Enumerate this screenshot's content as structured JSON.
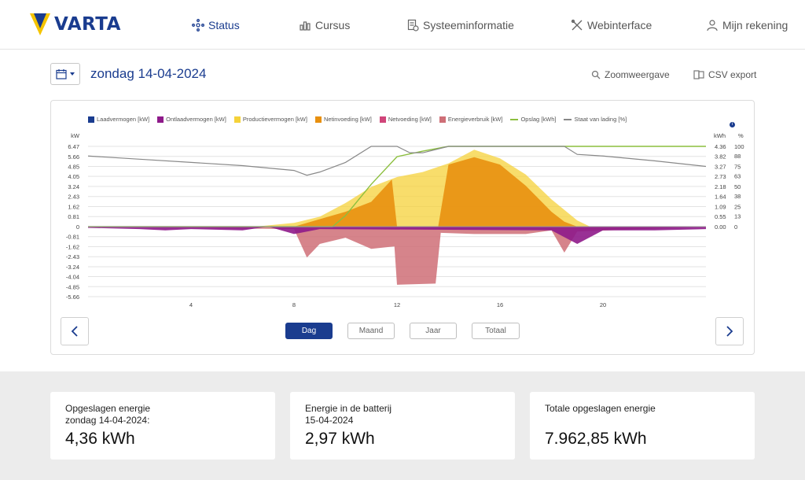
{
  "brand": {
    "name": "VARTA"
  },
  "nav": [
    {
      "label": "Status",
      "icon": "status-nodes-icon",
      "active": true
    },
    {
      "label": "Cursus",
      "icon": "bar-chart-icon"
    },
    {
      "label": "Systeeminformatie",
      "icon": "document-info-icon"
    },
    {
      "label": "Webinterface",
      "icon": "tools-icon"
    },
    {
      "label": "Mijn rekening",
      "icon": "user-icon"
    }
  ],
  "toolbar": {
    "date": "zondag 14-04-2024",
    "zoom": "Zoomweergave",
    "csv": "CSV export"
  },
  "legend": [
    {
      "label": "Laadvermogen [kW]",
      "color": "#1a3c8f"
    },
    {
      "label": "Ontlaadvermogen [kW]",
      "color": "#8e1a8a"
    },
    {
      "label": "Productievermogen [kW]",
      "color": "#f5d23a"
    },
    {
      "label": "Netinvoeding [kW]",
      "color": "#e8900f"
    },
    {
      "label": "Netvoeding [kW]",
      "color": "#d0457a"
    },
    {
      "label": "Energieverbruik [kW]",
      "color": "#cf6f77"
    },
    {
      "label": "Opslag [kWh]",
      "color": "#8cbf3f"
    },
    {
      "label": "Staat van lading [%]",
      "color": "#888888"
    }
  ],
  "chart_data": {
    "type": "area",
    "x_ticks": [
      "4",
      "8",
      "12",
      "16",
      "20"
    ],
    "xlim": [
      0,
      24
    ],
    "left_axis": {
      "label": "kW",
      "ticks": [
        "6.47",
        "5.66",
        "4.85",
        "4.05",
        "3.24",
        "2.43",
        "1.62",
        "0.81",
        "0",
        "-0.81",
        "-1.62",
        "-2.43",
        "-3.24",
        "-4.04",
        "-4.85",
        "-5.66"
      ],
      "ylim": [
        -5.66,
        6.47
      ]
    },
    "right_axis_kwh": {
      "label": "kWh",
      "ticks": [
        "4.36",
        "3.82",
        "3.27",
        "2.73",
        "2.18",
        "1.64",
        "1.09",
        "0.55",
        "0.00"
      ],
      "ylim": [
        0,
        4.36
      ]
    },
    "right_axis_pct": {
      "label": "%",
      "ticks": [
        "100",
        "88",
        "75",
        "63",
        "50",
        "38",
        "25",
        "13",
        "0"
      ],
      "ylim": [
        0,
        100
      ]
    },
    "series": [
      {
        "name": "Productievermogen [kW]",
        "x": [
          6.5,
          8,
          9,
          10,
          11,
          12,
          13,
          14,
          15,
          16,
          17,
          18,
          19,
          19.5
        ],
        "values": [
          0,
          0.3,
          0.8,
          1.9,
          3.2,
          4.0,
          4.4,
          5.1,
          6.2,
          5.5,
          4.2,
          2.2,
          0.5,
          0
        ]
      },
      {
        "name": "Netinvoeding [kW]",
        "x": [
          8,
          9,
          10,
          11,
          11.8,
          12,
          13.6,
          14,
          15,
          16,
          17,
          18,
          18.5,
          19
        ],
        "values": [
          0,
          0.6,
          1.2,
          2.0,
          3.8,
          0,
          0,
          5.0,
          5.6,
          5.0,
          3.3,
          1.2,
          0.4,
          0
        ]
      },
      {
        "name": "Energieverbruik [kW]",
        "x": [
          0,
          8,
          8.5,
          9,
          10,
          11,
          11.9,
          12,
          13.5,
          13.7,
          15,
          17,
          18,
          18.5,
          19,
          24
        ],
        "values": [
          0,
          -0.2,
          -2.5,
          -1.4,
          -0.9,
          -1.8,
          -1.6,
          -4.7,
          -4.6,
          -0.5,
          -0.6,
          -0.6,
          -0.3,
          -2.1,
          -0.4,
          0
        ]
      },
      {
        "name": "Ontlaadvermogen [kW]",
        "x": [
          0,
          2,
          3,
          4,
          6,
          7,
          8,
          9,
          18,
          19,
          20,
          22,
          24
        ],
        "values": [
          -0.1,
          -0.2,
          -0.3,
          -0.2,
          -0.3,
          0,
          -0.6,
          -0.2,
          -0.3,
          -1.4,
          -0.3,
          -0.3,
          -0.2
        ]
      },
      {
        "name": "Opslag [kWh]",
        "x": [
          0,
          9.5,
          10,
          11,
          12,
          13,
          14,
          24
        ],
        "values": [
          0,
          0,
          0.6,
          2.3,
          3.8,
          4.1,
          4.36,
          4.36
        ]
      },
      {
        "name": "Staat van lading [%]",
        "x": [
          0,
          2,
          4,
          6,
          8,
          8.5,
          9,
          10,
          11,
          11.5,
          12,
          12.5,
          13,
          14,
          18.5,
          19,
          20,
          22,
          24
        ],
        "values": [
          88,
          84,
          80,
          76,
          70,
          64,
          68,
          80,
          100,
          100,
          100,
          92,
          92,
          100,
          100,
          90,
          88,
          82,
          75
        ]
      }
    ]
  },
  "periods": [
    {
      "label": "Dag",
      "active": true
    },
    {
      "label": "Maand"
    },
    {
      "label": "Jaar"
    },
    {
      "label": "Totaal"
    }
  ],
  "stats": [
    {
      "label_line1": "Opgeslagen energie",
      "label_line2": "zondag 14-04-2024:",
      "value": "4,36 kWh"
    },
    {
      "label_line1": "Energie in de batterij",
      "label_line2": "15-04-2024",
      "value": "2,97 kWh"
    },
    {
      "label_line1": "Totale opgeslagen energie",
      "label_line2": "",
      "value": "7.962,85 kWh"
    }
  ]
}
